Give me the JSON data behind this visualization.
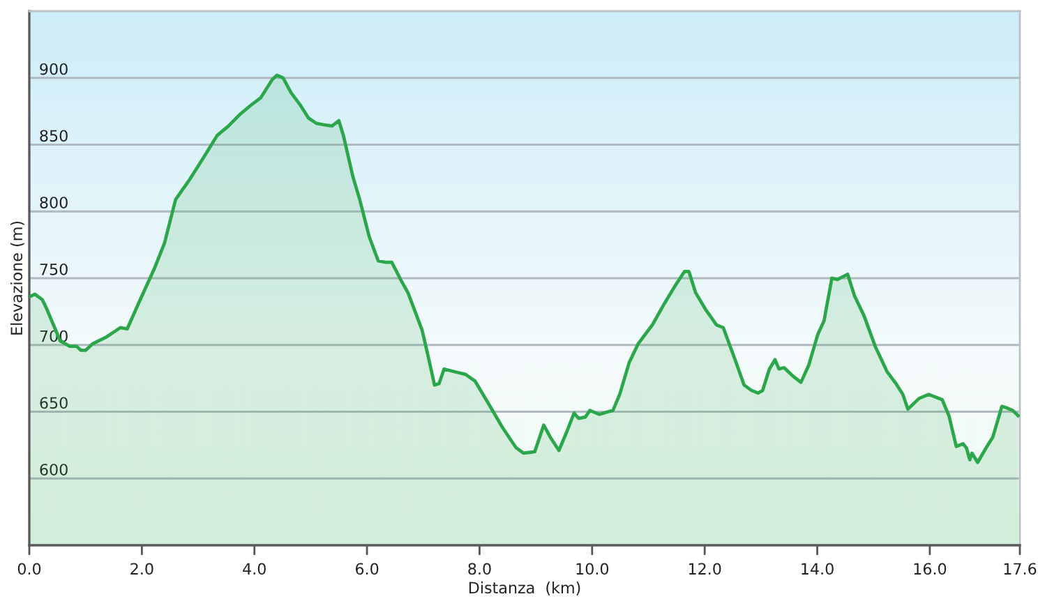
{
  "chart_data": {
    "type": "area",
    "xlabel": "Distanza  (km)",
    "ylabel": "Elevazione (m)",
    "x": [
      0,
      0.1,
      0.23,
      0.31,
      0.43,
      0.55,
      0.72,
      0.84,
      0.92,
      1.0,
      1.13,
      1.37,
      1.62,
      1.74,
      1.95,
      2.23,
      2.4,
      2.6,
      2.85,
      3.09,
      3.34,
      3.54,
      3.75,
      3.95,
      4.11,
      4.32,
      4.4,
      4.51,
      4.65,
      4.81,
      4.96,
      5.1,
      5.22,
      5.38,
      5.5,
      5.58,
      5.75,
      5.87,
      6.04,
      6.2,
      6.32,
      6.44,
      6.61,
      6.73,
      6.98,
      7.1,
      7.2,
      7.28,
      7.37,
      7.55,
      7.75,
      7.92,
      8.16,
      8.41,
      8.65,
      8.78,
      8.98,
      9.14,
      9.27,
      9.41,
      9.55,
      9.68,
      9.76,
      9.88,
      9.96,
      10.13,
      10.37,
      10.49,
      10.66,
      10.82,
      11.07,
      11.27,
      11.47,
      11.64,
      11.72,
      11.84,
      12.01,
      12.21,
      12.33,
      12.54,
      12.7,
      12.83,
      12.95,
      13.03,
      13.15,
      13.25,
      13.32,
      13.41,
      13.56,
      13.71,
      13.85,
      14.01,
      14.12,
      14.26,
      14.36,
      14.54,
      14.66,
      14.83,
      15.03,
      15.24,
      15.4,
      15.52,
      15.61,
      15.81,
      15.98,
      16.22,
      16.34,
      16.47,
      16.59,
      16.65,
      16.71,
      16.75,
      16.85,
      17.0,
      17.12,
      17.28,
      17.36,
      17.47,
      17.57
    ],
    "series": [
      {
        "color": "#2ca64a",
        "values": [
          736,
          738,
          734,
          727,
          715,
          703,
          699,
          699,
          696,
          696,
          701,
          706,
          713,
          712,
          732,
          758,
          776,
          809,
          824,
          840,
          857,
          864,
          873,
          880,
          885,
          899,
          902,
          900,
          889,
          880,
          870,
          866,
          865,
          864,
          868,
          857,
          826,
          809,
          781,
          763,
          762,
          762,
          748,
          739,
          711,
          689,
          670,
          671,
          682,
          680,
          678,
          673,
          656,
          638,
          623,
          619,
          620,
          640,
          630,
          621,
          635,
          649,
          645,
          646,
          651,
          648,
          651,
          663,
          687,
          701,
          715,
          730,
          744,
          755,
          755,
          739,
          727,
          715,
          713,
          689,
          670,
          666,
          664,
          666,
          682,
          689,
          682,
          683,
          677,
          672,
          685,
          708,
          718,
          750,
          749,
          753,
          737,
          722,
          699,
          680,
          671,
          663,
          652,
          660,
          663,
          659,
          647,
          624,
          626,
          623,
          614,
          619,
          612,
          623,
          631,
          654,
          653,
          651,
          647
        ]
      }
    ],
    "xlim": [
      0,
      17.6
    ],
    "ylim": [
      550,
      950
    ],
    "xticks": [
      {
        "value": 0,
        "label": "0.0"
      },
      {
        "value": 2,
        "label": "2.0"
      },
      {
        "value": 4,
        "label": "4.0"
      },
      {
        "value": 6,
        "label": "6.0"
      },
      {
        "value": 8,
        "label": "8.0"
      },
      {
        "value": 10,
        "label": "10.0"
      },
      {
        "value": 12,
        "label": "12.0"
      },
      {
        "value": 14,
        "label": "14.0"
      },
      {
        "value": 16,
        "label": "16.0"
      },
      {
        "value": 17.6,
        "label": "17.6"
      }
    ],
    "yticks": [
      600,
      650,
      700,
      750,
      800,
      850,
      900
    ],
    "grid": "y"
  }
}
